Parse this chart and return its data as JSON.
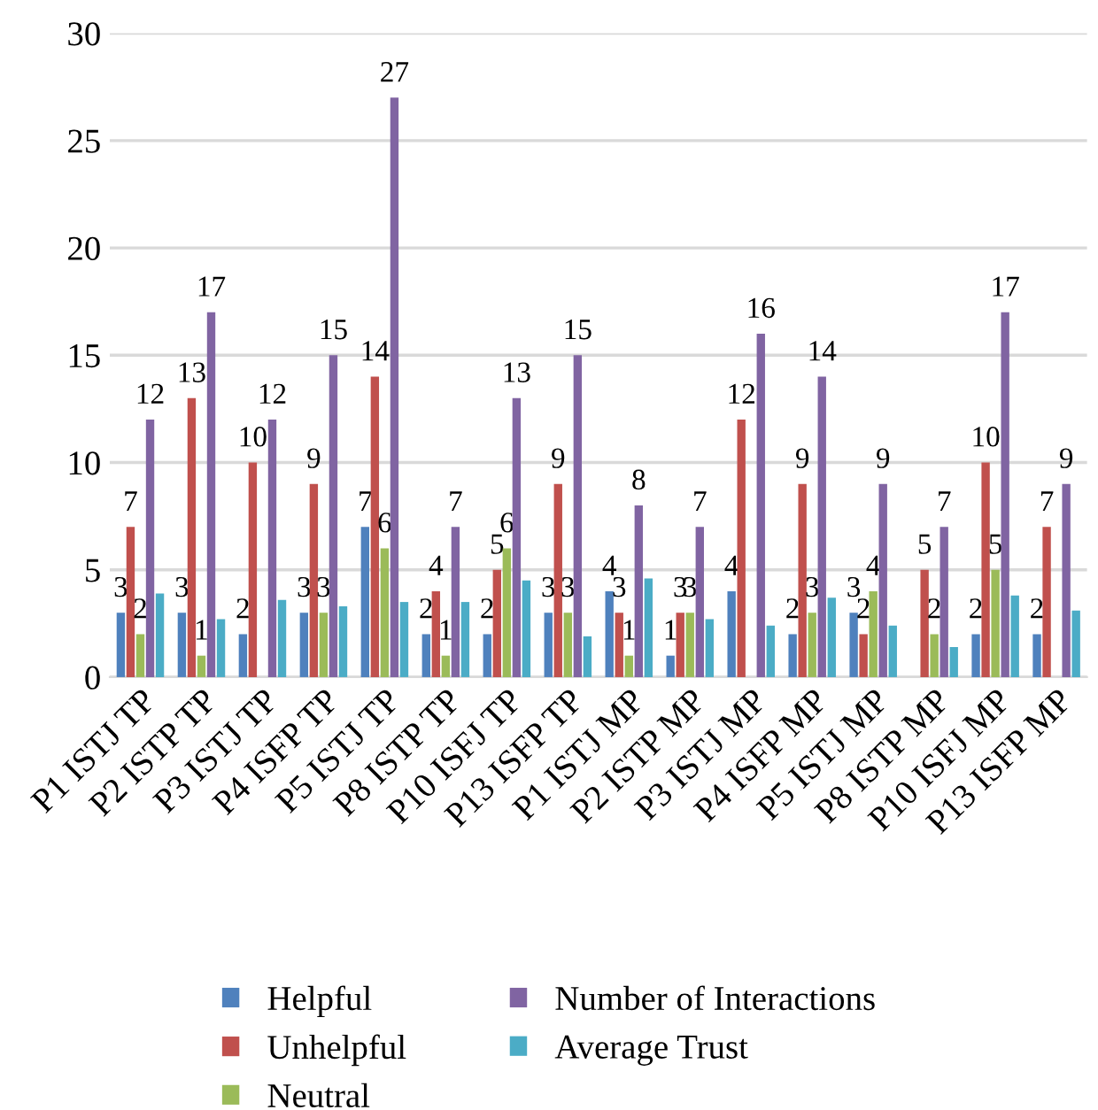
{
  "chart_data": {
    "type": "bar",
    "categories": [
      "P1 ISTJ TP",
      "P2 ISTP TP",
      "P3 ISTJ TP",
      "P4 ISFP TP",
      "P5 ISTJ TP",
      "P8 ISTP TP",
      "P10 ISFJ TP",
      "P13 ISFP TP",
      "P1 ISTJ MP",
      "P2 ISTP MP",
      "P3 ISTJ MP",
      "P4 ISFP MP",
      "P5 ISTJ MP",
      "P8 ISTP MP",
      "P10 ISFJ MP",
      "P13 ISFP MP"
    ],
    "series": [
      {
        "name": "Helpful",
        "color": "#4f81bd",
        "values": [
          3,
          3,
          2,
          3,
          7,
          2,
          2,
          3,
          4,
          1,
          4,
          2,
          3,
          null,
          2,
          2
        ],
        "value_labels": [
          "3",
          "3",
          "2",
          "3",
          "7",
          "2",
          "2",
          "3",
          "4",
          "1",
          "4",
          "2",
          "3",
          null,
          "2",
          "2"
        ]
      },
      {
        "name": "Unhelpful",
        "color": "#c0504d",
        "values": [
          7,
          13,
          10,
          9,
          14,
          4,
          5,
          9,
          3,
          3,
          12,
          9,
          2,
          5,
          10,
          7
        ],
        "value_labels": [
          "7",
          "13",
          "10",
          "9",
          "14",
          "4",
          "5",
          "9",
          "3",
          "3",
          "12",
          "9",
          "2",
          "5",
          "10",
          "7"
        ]
      },
      {
        "name": "Neutral",
        "color": "#9bbb59",
        "values": [
          2,
          1,
          null,
          3,
          6,
          1,
          6,
          3,
          1,
          3,
          null,
          3,
          4,
          2,
          5,
          null
        ],
        "value_labels": [
          "2",
          "1",
          null,
          "3",
          "6",
          "1",
          "6",
          "3",
          "1",
          "3",
          null,
          "3",
          "4",
          "2",
          "5",
          null
        ]
      },
      {
        "name": "Number of Interactions",
        "color": "#8064a2",
        "values": [
          12,
          17,
          12,
          15,
          27,
          7,
          13,
          15,
          8,
          7,
          16,
          14,
          9,
          7,
          17,
          9
        ],
        "value_labels": [
          "12",
          "17",
          "12",
          "15",
          "27",
          "7",
          "13",
          "15",
          "8",
          "7",
          "16",
          "14",
          "9",
          "7",
          "17",
          "9"
        ]
      },
      {
        "name": "Average Trust",
        "color": "#4bacc6",
        "values": [
          3.9,
          2.7,
          3.6,
          3.3,
          3.5,
          3.5,
          4.5,
          1.9,
          4.6,
          2.7,
          2.4,
          3.7,
          2.4,
          1.4,
          3.8,
          3.1
        ]
      }
    ],
    "ylim": [
      0,
      30
    ],
    "yticks": [
      0,
      5,
      10,
      15,
      20,
      25,
      30
    ],
    "grid": "y",
    "legend": "bottom"
  }
}
